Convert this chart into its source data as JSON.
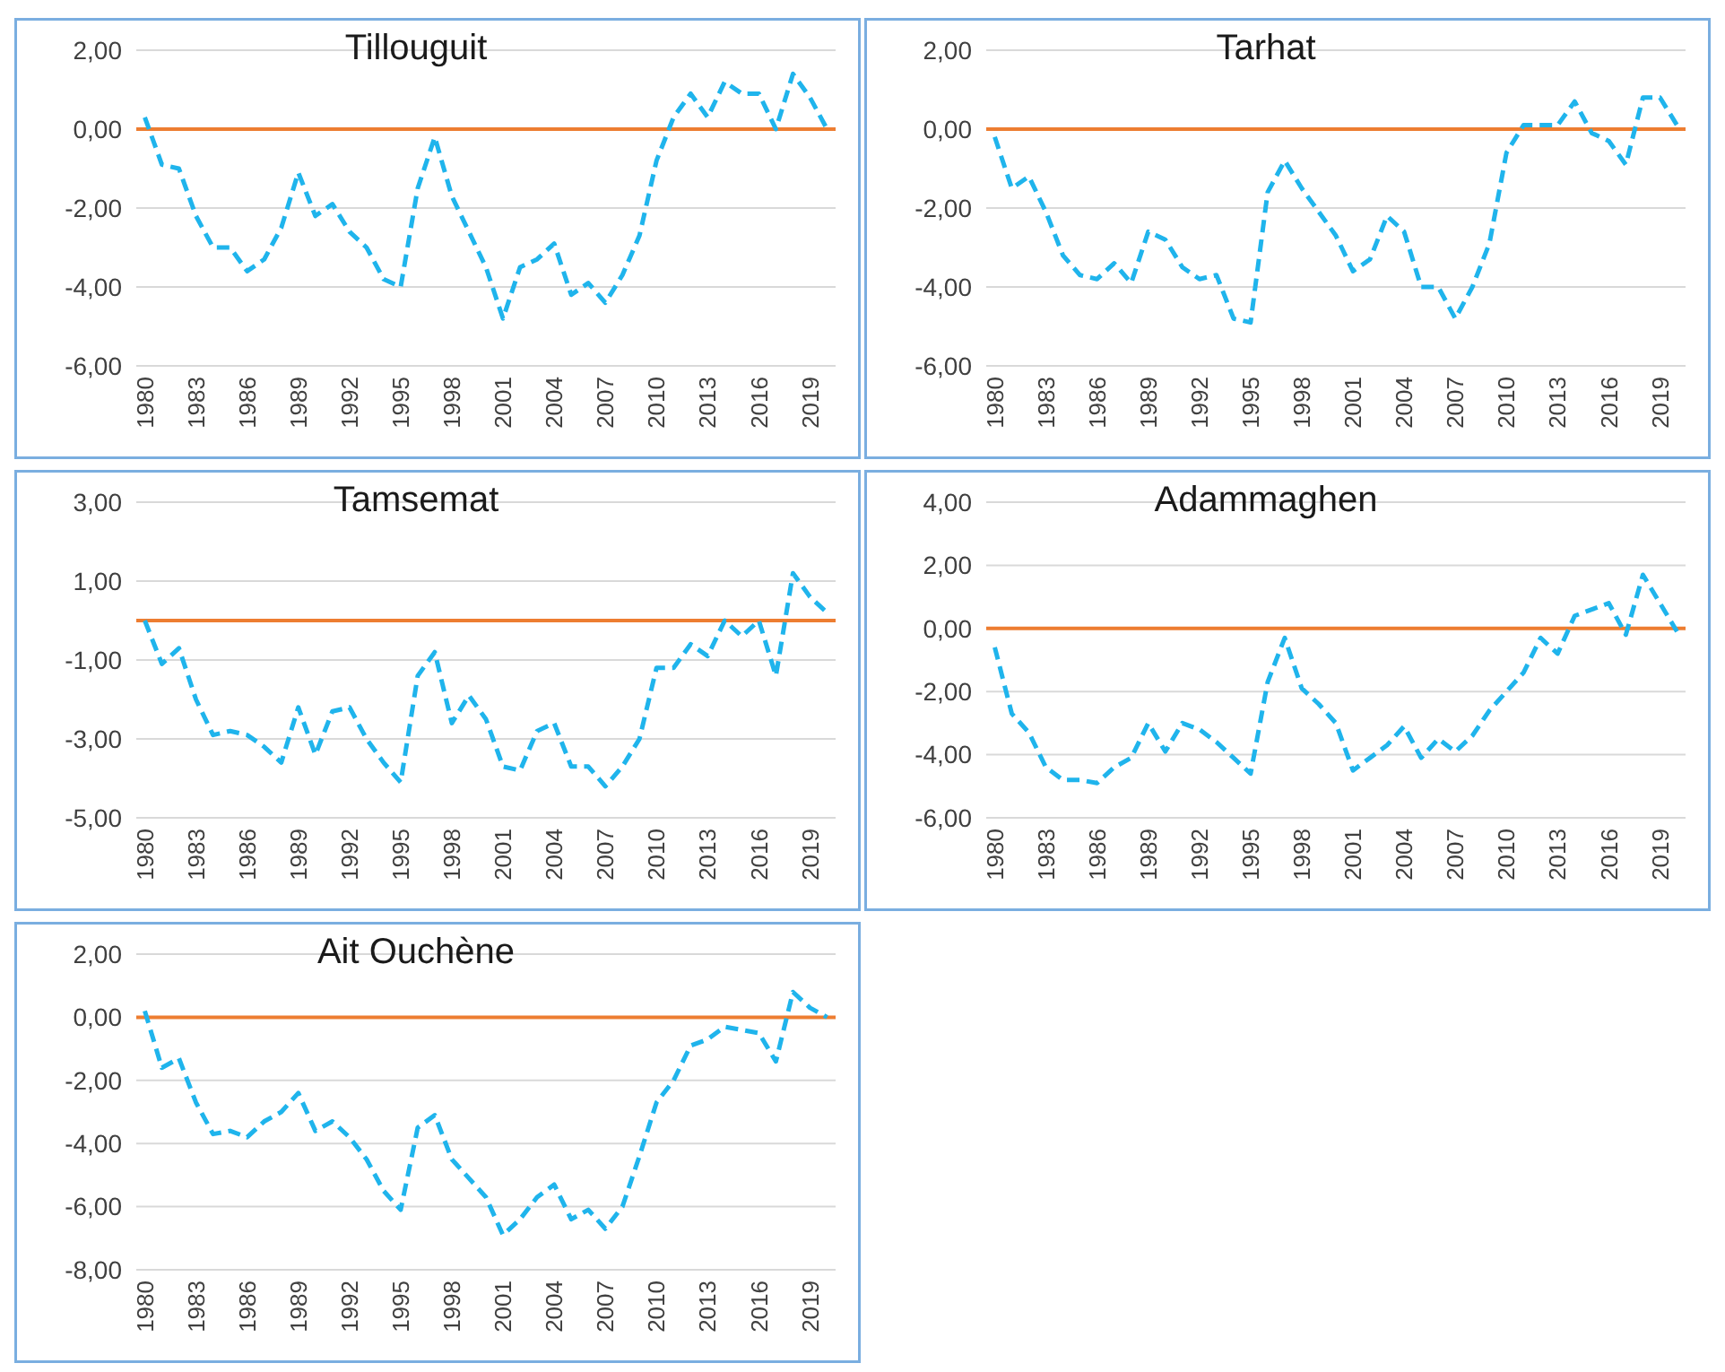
{
  "chart_data": [
    {
      "type": "line",
      "title": "Tillouguit",
      "categories": [
        "1980",
        null,
        null,
        "1983",
        null,
        null,
        "1986",
        null,
        null,
        "1989",
        null,
        null,
        "1992",
        null,
        null,
        "1995",
        null,
        null,
        "1998",
        null,
        null,
        "2001",
        null,
        null,
        "2004",
        null,
        null,
        "2007",
        null,
        null,
        "2010",
        null,
        null,
        "2013",
        null,
        null,
        "2016",
        null,
        null,
        "2019",
        null
      ],
      "series": [
        {
          "color": "#1fb4ec",
          "values": [
            0.3,
            -0.9,
            -1.0,
            -2.2,
            -3.0,
            -3.0,
            -3.6,
            -3.3,
            -2.5,
            -1.1,
            -2.2,
            -1.9,
            -2.6,
            -3.0,
            -3.8,
            -4.0,
            -1.5,
            -0.2,
            -1.7,
            -2.6,
            -3.5,
            -4.8,
            -3.5,
            -3.3,
            -2.9,
            -4.2,
            -3.9,
            -4.4,
            -3.7,
            -2.7,
            -0.8,
            0.3,
            0.9,
            0.3,
            1.2,
            0.9,
            0.9,
            0.0,
            1.4,
            0.8,
            0.0
          ]
        }
      ],
      "ylim": [
        -6,
        2
      ],
      "yticks": [
        {
          "value": -6,
          "label": "-6,00"
        },
        {
          "value": -4,
          "label": "-4,00"
        },
        {
          "value": -2,
          "label": "-2,00"
        },
        {
          "value": 0,
          "label": "0,00"
        },
        {
          "value": 2,
          "label": "2,00"
        }
      ],
      "ref_lines": [
        {
          "axis": "y",
          "value": 0,
          "color": "#ed7d31"
        }
      ],
      "grid": "y",
      "line_style": "dashed",
      "marker": "none"
    },
    {
      "type": "line",
      "title": "Tarhat",
      "categories": [
        "1980",
        null,
        null,
        "1983",
        null,
        null,
        "1986",
        null,
        null,
        "1989",
        null,
        null,
        "1992",
        null,
        null,
        "1995",
        null,
        null,
        "1998",
        null,
        null,
        "2001",
        null,
        null,
        "2004",
        null,
        null,
        "2007",
        null,
        null,
        "2010",
        null,
        null,
        "2013",
        null,
        null,
        "2016",
        null,
        null,
        "2019",
        null
      ],
      "series": [
        {
          "color": "#1fb4ec",
          "values": [
            -0.2,
            -1.5,
            -1.2,
            -2.1,
            -3.2,
            -3.7,
            -3.8,
            -3.4,
            -3.9,
            -2.6,
            -2.8,
            -3.5,
            -3.8,
            -3.7,
            -4.8,
            -4.9,
            -1.6,
            -0.8,
            -1.5,
            -2.1,
            -2.7,
            -3.6,
            -3.3,
            -2.2,
            -2.6,
            -4.0,
            -4.0,
            -4.8,
            -4.0,
            -2.9,
            -0.6,
            0.1,
            0.1,
            0.1,
            0.7,
            -0.1,
            -0.3,
            -0.9,
            0.8,
            0.8,
            0.1
          ]
        }
      ],
      "ylim": [
        -6,
        2
      ],
      "yticks": [
        {
          "value": -6,
          "label": "-6,00"
        },
        {
          "value": -4,
          "label": "-4,00"
        },
        {
          "value": -2,
          "label": "-2,00"
        },
        {
          "value": 0,
          "label": "0,00"
        },
        {
          "value": 2,
          "label": "2,00"
        }
      ],
      "ref_lines": [
        {
          "axis": "y",
          "value": 0,
          "color": "#ed7d31"
        }
      ],
      "grid": "y",
      "line_style": "dashed",
      "marker": "none"
    },
    {
      "type": "line",
      "title": "Tamsemat",
      "categories": [
        "1980",
        null,
        null,
        "1983",
        null,
        null,
        "1986",
        null,
        null,
        "1989",
        null,
        null,
        "1992",
        null,
        null,
        "1995",
        null,
        null,
        "1998",
        null,
        null,
        "2001",
        null,
        null,
        "2004",
        null,
        null,
        "2007",
        null,
        null,
        "2010",
        null,
        null,
        "2013",
        null,
        null,
        "2016",
        null,
        null,
        "2019",
        null
      ],
      "series": [
        {
          "color": "#1fb4ec",
          "values": [
            0.0,
            -1.1,
            -0.7,
            -2.0,
            -2.9,
            -2.8,
            -2.9,
            -3.2,
            -3.6,
            -2.2,
            -3.4,
            -2.3,
            -2.2,
            -3.0,
            -3.6,
            -4.1,
            -1.4,
            -0.8,
            -2.6,
            -1.9,
            -2.5,
            -3.7,
            -3.8,
            -2.8,
            -2.6,
            -3.7,
            -3.7,
            -4.2,
            -3.7,
            -3.0,
            -1.2,
            -1.2,
            -0.6,
            -0.9,
            0.0,
            -0.4,
            0.0,
            -1.4,
            1.2,
            0.6,
            0.2
          ]
        }
      ],
      "ylim": [
        -5,
        3
      ],
      "yticks": [
        {
          "value": -5,
          "label": "-5,00"
        },
        {
          "value": -3,
          "label": "-3,00"
        },
        {
          "value": -1,
          "label": "-1,00"
        },
        {
          "value": 1,
          "label": "1,00"
        },
        {
          "value": 3,
          "label": "3,00"
        }
      ],
      "ref_lines": [
        {
          "axis": "y",
          "value": 0,
          "color": "#ed7d31"
        }
      ],
      "grid": "y",
      "line_style": "dashed",
      "marker": "none"
    },
    {
      "type": "line",
      "title": "Adammaghen",
      "categories": [
        "1980",
        null,
        null,
        "1983",
        null,
        null,
        "1986",
        null,
        null,
        "1989",
        null,
        null,
        "1992",
        null,
        null,
        "1995",
        null,
        null,
        "1998",
        null,
        null,
        "2001",
        null,
        null,
        "2004",
        null,
        null,
        "2007",
        null,
        null,
        "2010",
        null,
        null,
        "2013",
        null,
        null,
        "2016",
        null,
        null,
        "2019",
        null
      ],
      "series": [
        {
          "color": "#1fb4ec",
          "values": [
            -0.6,
            -2.7,
            -3.3,
            -4.4,
            -4.8,
            -4.8,
            -4.9,
            -4.4,
            -4.1,
            -3.0,
            -3.9,
            -3.0,
            -3.2,
            -3.6,
            -4.1,
            -4.6,
            -1.7,
            -0.3,
            -1.9,
            -2.4,
            -3.0,
            -4.5,
            -4.1,
            -3.7,
            -3.1,
            -4.1,
            -3.5,
            -3.9,
            -3.4,
            -2.6,
            -2.0,
            -1.4,
            -0.3,
            -0.8,
            0.4,
            0.6,
            0.8,
            -0.2,
            1.7,
            0.8,
            -0.1
          ]
        }
      ],
      "ylim": [
        -6,
        4
      ],
      "yticks": [
        {
          "value": -6,
          "label": "-6,00"
        },
        {
          "value": -4,
          "label": "-4,00"
        },
        {
          "value": -2,
          "label": "-2,00"
        },
        {
          "value": 0,
          "label": "0,00"
        },
        {
          "value": 2,
          "label": "2,00"
        },
        {
          "value": 4,
          "label": "4,00"
        }
      ],
      "ref_lines": [
        {
          "axis": "y",
          "value": 0,
          "color": "#ed7d31"
        }
      ],
      "grid": "y",
      "line_style": "dashed",
      "marker": "none"
    },
    {
      "type": "line",
      "title": "Ait Ouchène",
      "categories": [
        "1980",
        null,
        null,
        "1983",
        null,
        null,
        "1986",
        null,
        null,
        "1989",
        null,
        null,
        "1992",
        null,
        null,
        "1995",
        null,
        null,
        "1998",
        null,
        null,
        "2001",
        null,
        null,
        "2004",
        null,
        null,
        "2007",
        null,
        null,
        "2010",
        null,
        null,
        "2013",
        null,
        null,
        "2016",
        null,
        null,
        "2019",
        null
      ],
      "series": [
        {
          "color": "#1fb4ec",
          "values": [
            0.2,
            -1.6,
            -1.3,
            -2.7,
            -3.7,
            -3.6,
            -3.8,
            -3.3,
            -3.0,
            -2.4,
            -3.6,
            -3.3,
            -3.8,
            -4.5,
            -5.5,
            -6.1,
            -3.5,
            -3.1,
            -4.5,
            -5.1,
            -5.7,
            -6.9,
            -6.4,
            -5.7,
            -5.3,
            -6.4,
            -6.1,
            -6.7,
            -6.0,
            -4.4,
            -2.7,
            -2.0,
            -0.9,
            -0.7,
            -0.3,
            -0.4,
            -0.5,
            -1.4,
            0.8,
            0.3,
            0.0
          ]
        }
      ],
      "ylim": [
        -8,
        2
      ],
      "yticks": [
        {
          "value": -8,
          "label": "-8,00"
        },
        {
          "value": -6,
          "label": "-6,00"
        },
        {
          "value": -4,
          "label": "-4,00"
        },
        {
          "value": -2,
          "label": "-2,00"
        },
        {
          "value": 0,
          "label": "0,00"
        },
        {
          "value": 2,
          "label": "2,00"
        }
      ],
      "ref_lines": [
        {
          "axis": "y",
          "value": 0,
          "color": "#ed7d31"
        }
      ],
      "grid": "y",
      "line_style": "dashed",
      "marker": "none"
    }
  ]
}
